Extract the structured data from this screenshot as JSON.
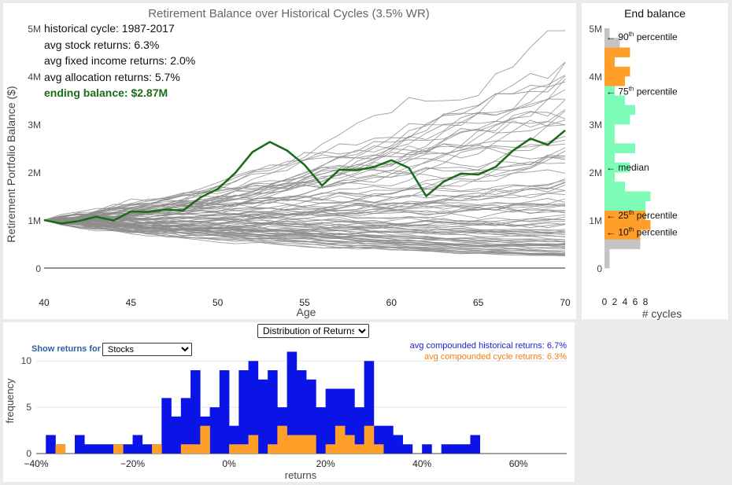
{
  "colors": {
    "gray_line": "#8c8c8c",
    "highlight": "#1a6b1a",
    "orange": "#ff9f2a",
    "green": "#7dfcb8",
    "lightgray": "#c4c4c4",
    "blue": "#0a14e6",
    "blue_text": "#1b1bd6",
    "orange_text": "#f07f10",
    "label_blue": "#2a5fa5"
  },
  "main_chart": {
    "title": "Retirement Balance over Historical Cycles (3.5% WR)",
    "ylabel": "Retirement Portfolio Balance ($)",
    "xlabel": "Age",
    "info": {
      "cycle": "historical cycle: 1987-2017",
      "stock": "avg stock returns: 6.3%",
      "fixed": "avg fixed income returns: 2.0%",
      "alloc": "avg allocation returns: 5.7%",
      "ending": "ending balance: $2.87M"
    }
  },
  "side_chart": {
    "title": "End balance",
    "xlabel": "# cycles",
    "percentile_labels": {
      "p90": "90",
      "p75": "75",
      "median": "median",
      "p25": "25",
      "p10": "10",
      "suffix_th": "th",
      "suffix_text": "percentile",
      "arrow": "←"
    }
  },
  "bottom_chart": {
    "dropdown_value": "Distribution of Returns",
    "show_label": "Show returns for",
    "asset_value": "Stocks",
    "ylabel": "frequency",
    "xlabel": "returns",
    "legend_hist": "avg compounded historical returns: 6.7%",
    "legend_cycle": "avg compounded cycle returns: 6.3%"
  },
  "chart_data": [
    {
      "type": "line",
      "title": "Retirement Balance over Historical Cycles (3.5% WR)",
      "xlabel": "Age",
      "ylabel": "Retirement Portfolio Balance ($)",
      "xlim": [
        40,
        70
      ],
      "ylim": [
        0,
        5000000
      ],
      "x_ticks": [
        "40",
        "45",
        "50",
        "55",
        "60",
        "65",
        "70"
      ],
      "y_ticks": [
        "0",
        "1M",
        "2M",
        "3M",
        "4M",
        "5M"
      ],
      "background_series_count": 90,
      "background_series_range_at_70": [
        0.25,
        4.9
      ],
      "highlight_series": {
        "name": "1987-2017",
        "x": [
          40,
          41,
          42,
          43,
          44,
          45,
          46,
          47,
          48,
          49,
          50,
          51,
          52,
          53,
          54,
          55,
          56,
          57,
          58,
          59,
          60,
          61,
          62,
          63,
          64,
          65,
          66,
          67,
          68,
          69,
          70
        ],
        "y": [
          1.0,
          0.93,
          0.98,
          1.07,
          0.99,
          1.18,
          1.17,
          1.22,
          1.2,
          1.47,
          1.65,
          1.98,
          2.42,
          2.63,
          2.45,
          2.15,
          1.72,
          2.05,
          2.04,
          2.11,
          2.25,
          2.09,
          1.5,
          1.8,
          1.97,
          1.95,
          2.11,
          2.45,
          2.7,
          2.57,
          2.87
        ]
      }
    },
    {
      "type": "bar",
      "title": "End balance",
      "xlabel": "# cycles",
      "orientation": "horizontal",
      "bin_width_millions": 0.2,
      "x_ticks": [
        "0",
        "2",
        "4",
        "6",
        "8"
      ],
      "y_ticks": [
        "0",
        "1M",
        "2M",
        "3M",
        "4M",
        "5M"
      ],
      "bins_bottom_millions": [
        0.0,
        0.2,
        0.4,
        0.6,
        0.8,
        1.0,
        1.2,
        1.4,
        1.6,
        1.8,
        2.0,
        2.2,
        2.4,
        2.6,
        2.8,
        3.0,
        3.2,
        3.4,
        3.6,
        3.8,
        4.0,
        4.2,
        4.4,
        4.6,
        4.8
      ],
      "counts": [
        1,
        1,
        7,
        7,
        9,
        8,
        8,
        9,
        4,
        2,
        5,
        2,
        6,
        2,
        2,
        5,
        6,
        4,
        2,
        4,
        5,
        2,
        5,
        3,
        1
      ],
      "band": [
        "lightgray",
        "lightgray",
        "lightgray",
        "orange",
        "orange",
        "orange",
        "green",
        "green",
        "green",
        "green",
        "green",
        "green",
        "green",
        "green",
        "green",
        "green",
        "green",
        "green",
        "green",
        "orange",
        "orange",
        "orange",
        "orange",
        "lightgray",
        "lightgray"
      ],
      "percentile_markers_millions": {
        "p90": 4.82,
        "p75": 3.68,
        "median": 2.1,
        "p25": 1.1,
        "p10": 0.75
      }
    },
    {
      "type": "bar",
      "xlabel": "returns",
      "ylabel": "frequency",
      "xlim": [
        -40,
        70
      ],
      "ylim": [
        0,
        11
      ],
      "x_ticks": [
        "−40%",
        "−20%",
        "0%",
        "20%",
        "40%",
        "60%"
      ],
      "y_ticks": [
        "0",
        "5",
        "10"
      ],
      "bin_width_pct": 2,
      "series": [
        {
          "name": "avg compounded historical returns: 6.7%",
          "bins_left_pct": [
            -38,
            -36,
            -32,
            -30,
            -28,
            -26,
            -24,
            -22,
            -20,
            -18,
            -16,
            -14,
            -12,
            -10,
            -8,
            -6,
            -4,
            -2,
            0,
            2,
            4,
            6,
            8,
            10,
            12,
            14,
            16,
            18,
            20,
            22,
            24,
            26,
            28,
            30,
            32,
            34,
            36,
            40,
            44,
            46,
            48,
            50
          ],
          "values": [
            2,
            1,
            2,
            1,
            1,
            1,
            1,
            1,
            2,
            1,
            1,
            6,
            4,
            6,
            9,
            4,
            5,
            9,
            3,
            9,
            10,
            8,
            9,
            5,
            11,
            9,
            8,
            5,
            7,
            7,
            7,
            5,
            10,
            3,
            3,
            2,
            1,
            1,
            1,
            1,
            1,
            2
          ]
        },
        {
          "name": "avg compounded cycle returns: 6.3%",
          "bins_left_pct": [
            -36,
            -24,
            -16,
            -10,
            -8,
            -6,
            0,
            2,
            4,
            8,
            10,
            12,
            14,
            16,
            20,
            22,
            24,
            26,
            28,
            30
          ],
          "values": [
            1,
            1,
            1,
            1,
            1,
            3,
            1,
            1,
            2,
            1,
            3,
            2,
            2,
            2,
            1,
            3,
            2,
            1,
            3,
            1
          ]
        }
      ]
    }
  ]
}
